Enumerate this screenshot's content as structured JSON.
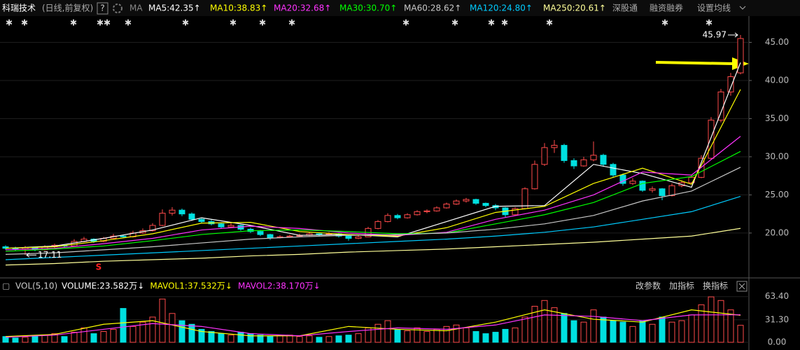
{
  "header": {
    "stock": "科瑞技术",
    "mode": "(日线,前复权)",
    "help": "?",
    "ma": "MA",
    "buttons": [
      "深股通",
      "融资融券",
      "设置均线"
    ]
  },
  "chart_data": {
    "type": "candlestick",
    "ylim": [
      14.3,
      47.8
    ],
    "yticks": [
      {
        "value": 20,
        "label": "20.00"
      },
      {
        "value": 25,
        "label": "25.00"
      },
      {
        "value": 30,
        "label": "30.00"
      },
      {
        "value": 35,
        "label": "35.00"
      },
      {
        "value": 40,
        "label": "40.00"
      },
      {
        "value": 45,
        "label": "45.00"
      }
    ],
    "up_color": "#ff4a4a",
    "down_color": "#00e0e0",
    "grid": true,
    "ohlc": [
      [
        18.2,
        18.4,
        17.8,
        18.0
      ],
      [
        18.0,
        18.2,
        17.7,
        17.9
      ],
      [
        17.9,
        18.3,
        17.11,
        18.1
      ],
      [
        18.1,
        18.2,
        17.6,
        17.8
      ],
      [
        17.8,
        18.4,
        17.7,
        18.2
      ],
      [
        18.2,
        18.6,
        18.0,
        18.4
      ],
      [
        18.4,
        18.5,
        18.1,
        18.3
      ],
      [
        18.3,
        19.2,
        18.2,
        18.9
      ],
      [
        18.9,
        19.5,
        18.8,
        19.2
      ],
      [
        19.2,
        19.3,
        18.7,
        18.9
      ],
      [
        18.9,
        19.5,
        18.8,
        19.3
      ],
      [
        19.3,
        19.9,
        19.2,
        19.6
      ],
      [
        19.6,
        19.8,
        19.3,
        19.5
      ],
      [
        19.5,
        20.3,
        19.4,
        20.0
      ],
      [
        20.0,
        20.6,
        19.9,
        20.3
      ],
      [
        20.3,
        21.3,
        20.2,
        21.0
      ],
      [
        21.0,
        23.1,
        20.9,
        22.6
      ],
      [
        22.6,
        23.4,
        22.3,
        23.0
      ],
      [
        23.0,
        23.2,
        22.2,
        22.5
      ],
      [
        22.5,
        22.7,
        21.6,
        21.8
      ],
      [
        21.8,
        22.0,
        21.3,
        21.5
      ],
      [
        21.5,
        21.8,
        21.0,
        21.2
      ],
      [
        21.2,
        21.4,
        20.6,
        20.8
      ],
      [
        20.8,
        21.3,
        20.7,
        21.0
      ],
      [
        21.0,
        21.1,
        20.3,
        20.5
      ],
      [
        20.5,
        20.7,
        20.0,
        20.2
      ],
      [
        20.2,
        20.4,
        19.6,
        19.8
      ],
      [
        19.8,
        19.9,
        19.1,
        19.4
      ],
      [
        19.4,
        19.7,
        19.3,
        19.5
      ],
      [
        19.5,
        19.8,
        19.4,
        19.6
      ],
      [
        19.6,
        19.9,
        19.5,
        19.7
      ],
      [
        19.7,
        20.1,
        19.6,
        19.9
      ],
      [
        19.9,
        20.0,
        19.6,
        19.8
      ],
      [
        19.8,
        20.1,
        19.7,
        19.9
      ],
      [
        19.9,
        20.0,
        19.4,
        19.6
      ],
      [
        19.6,
        19.7,
        19.0,
        19.3
      ],
      [
        19.3,
        19.7,
        19.2,
        19.5
      ],
      [
        19.5,
        20.8,
        19.5,
        20.6
      ],
      [
        20.6,
        21.7,
        20.5,
        21.5
      ],
      [
        21.5,
        22.6,
        21.4,
        22.3
      ],
      [
        22.3,
        22.5,
        21.8,
        22.0
      ],
      [
        22.0,
        22.6,
        21.9,
        22.4
      ],
      [
        22.4,
        23.0,
        22.3,
        22.8
      ],
      [
        22.8,
        23.1,
        22.6,
        22.9
      ],
      [
        22.9,
        23.5,
        22.8,
        23.3
      ],
      [
        23.3,
        24.0,
        23.2,
        23.8
      ],
      [
        23.8,
        24.4,
        23.7,
        24.2
      ],
      [
        24.2,
        24.6,
        24.0,
        24.4
      ],
      [
        24.4,
        24.5,
        23.7,
        23.9
      ],
      [
        23.9,
        24.0,
        23.4,
        23.6
      ],
      [
        23.6,
        23.8,
        23.0,
        23.3
      ],
      [
        23.3,
        23.4,
        22.1,
        22.4
      ],
      [
        22.4,
        23.4,
        22.3,
        23.2
      ],
      [
        23.2,
        26.0,
        23.1,
        25.8
      ],
      [
        25.8,
        29.5,
        25.7,
        29.0
      ],
      [
        29.0,
        31.8,
        28.8,
        31.2
      ],
      [
        31.2,
        32.2,
        30.5,
        31.5
      ],
      [
        31.5,
        31.7,
        29.2,
        29.5
      ],
      [
        29.5,
        29.8,
        28.4,
        28.8
      ],
      [
        28.8,
        30.0,
        28.7,
        29.6
      ],
      [
        29.6,
        32.0,
        29.4,
        30.2
      ],
      [
        30.2,
        30.4,
        28.7,
        29.0
      ],
      [
        29.0,
        29.2,
        27.3,
        27.6
      ],
      [
        27.6,
        27.8,
        26.2,
        26.5
      ],
      [
        26.5,
        27.2,
        26.3,
        26.8
      ],
      [
        26.8,
        26.9,
        25.4,
        25.6
      ],
      [
        25.6,
        26.1,
        25.3,
        25.8
      ],
      [
        25.8,
        25.9,
        24.3,
        24.9
      ],
      [
        24.9,
        26.5,
        24.8,
        26.2
      ],
      [
        26.2,
        26.9,
        26.0,
        26.6
      ],
      [
        26.6,
        27.6,
        26.4,
        27.3
      ],
      [
        27.3,
        30.2,
        27.2,
        29.8
      ],
      [
        29.8,
        35.2,
        29.6,
        34.8
      ],
      [
        34.8,
        38.9,
        34.5,
        38.5
      ],
      [
        38.5,
        41.0,
        38.0,
        40.5
      ],
      [
        41.0,
        45.97,
        40.8,
        45.5
      ]
    ],
    "ma_x": [
      0,
      5,
      10,
      15,
      20,
      25,
      30,
      35,
      40,
      45,
      50,
      55,
      60,
      65,
      70,
      75
    ],
    "ma": [
      {
        "label": "MA5:42.35↑",
        "color": "#ffffff",
        "values": [
          18.0,
          18.3,
          19.3,
          20.4,
          22.0,
          21.0,
          19.7,
          19.8,
          19.5,
          21.5,
          23.5,
          23.6,
          29.0,
          27.8,
          26.0,
          42.35
        ]
      },
      {
        "label": "MA10:38.83↑",
        "color": "#ffff00",
        "values": [
          18.0,
          18.2,
          19.0,
          19.9,
          21.3,
          21.4,
          20.2,
          19.8,
          19.6,
          20.7,
          22.7,
          23.5,
          26.5,
          28.5,
          26.4,
          38.83
        ]
      },
      {
        "label": "MA20:32.68↑",
        "color": "#ff33ff",
        "values": [
          17.8,
          18.0,
          18.6,
          19.3,
          20.4,
          20.9,
          20.6,
          20.0,
          19.7,
          20.1,
          21.8,
          23.0,
          25.0,
          28.0,
          27.6,
          32.68
        ]
      },
      {
        "label": "MA30:30.70↑",
        "color": "#00ff00",
        "values": [
          17.6,
          17.9,
          18.3,
          19.0,
          19.8,
          20.3,
          20.4,
          20.2,
          19.9,
          20.0,
          21.2,
          22.4,
          24.0,
          26.5,
          27.4,
          30.7
        ]
      },
      {
        "label": "MA60:28.62↑",
        "color": "#c8c8c8",
        "values": [
          17.2,
          17.4,
          17.8,
          18.2,
          18.7,
          19.2,
          19.5,
          19.7,
          19.8,
          20.0,
          20.5,
          21.2,
          22.3,
          24.2,
          25.5,
          28.62
        ]
      },
      {
        "label": "MA120:24.80↑",
        "color": "#00ccff",
        "values": [
          16.5,
          16.8,
          17.1,
          17.4,
          17.7,
          18.0,
          18.3,
          18.6,
          18.9,
          19.2,
          19.6,
          20.1,
          20.8,
          21.8,
          22.8,
          24.8
        ]
      },
      {
        "label": "MA250:20.61↑",
        "color": "#ffff99",
        "values": [
          15.8,
          16.0,
          16.3,
          16.5,
          16.7,
          17.0,
          17.2,
          17.5,
          17.7,
          17.9,
          18.2,
          18.5,
          18.8,
          19.2,
          19.6,
          20.61
        ]
      }
    ],
    "annotations": [
      {
        "text": "45.97",
        "value": 45.97,
        "index": 75
      },
      {
        "text": "17.11",
        "value": 17.11,
        "index": 2
      },
      {
        "text": "S",
        "index": 9
      }
    ],
    "volume_panel": {
      "title": "VOL(5,10)",
      "labels": [
        {
          "text": "VOLUME:23.582万↓",
          "color": "#ffffff"
        },
        {
          "text": "MAVOL1:37.532万↓",
          "color": "#ffff00"
        },
        {
          "text": "MAVOL2:38.170万↓",
          "color": "#ff33ff"
        }
      ],
      "buttons": [
        "改参数",
        "加指标",
        "换指标"
      ],
      "ylim": [
        0,
        67
      ],
      "yticks": [
        {
          "value": 0,
          "label": "0.00"
        },
        {
          "value": 31.3,
          "label": "31.30"
        },
        {
          "value": 63.4,
          "label": "63.40"
        }
      ],
      "values": [
        8,
        6,
        7,
        9,
        10,
        12,
        8,
        14,
        20,
        12,
        15,
        18,
        47,
        22,
        28,
        35,
        60,
        40,
        30,
        25,
        18,
        15,
        12,
        10,
        14,
        12,
        10,
        8,
        9,
        10,
        8,
        9,
        7,
        8,
        9,
        10,
        12,
        20,
        25,
        30,
        18,
        16,
        20,
        15,
        18,
        22,
        24,
        20,
        15,
        12,
        14,
        18,
        20,
        35,
        50,
        58,
        48,
        40,
        30,
        28,
        45,
        35,
        30,
        28,
        22,
        30,
        25,
        35,
        28,
        30,
        38,
        52,
        63,
        58,
        45,
        23.582
      ],
      "mavol": [
        {
          "color": "#ffff00",
          "values": [
            8,
            11,
            25,
            30,
            15,
            9,
            9,
            22,
            18,
            16,
            28,
            45,
            32,
            28,
            45,
            37.532
          ]
        },
        {
          "color": "#ff33ff",
          "values": [
            7,
            10,
            18,
            26,
            22,
            12,
            9,
            15,
            20,
            18,
            24,
            38,
            36,
            30,
            38,
            38.17
          ]
        }
      ]
    }
  }
}
